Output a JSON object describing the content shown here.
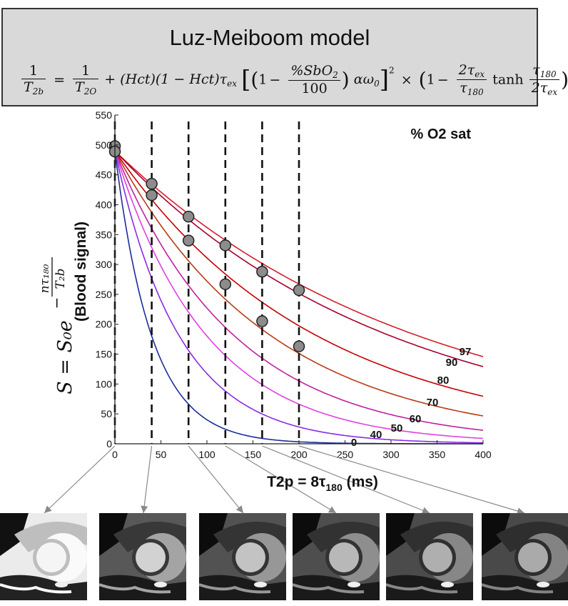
{
  "header": {
    "title": "Luz-Meiboom model",
    "equation": {
      "lhs_num": "1",
      "lhs_den_base": "T",
      "lhs_den_sub": "2b",
      "eq": "=",
      "t_num": "1",
      "t_den_base": "T",
      "t_den_sub": "2O",
      "hct_term": "+ (Hct)(1 − Hct)τ",
      "hct_sub": "ex",
      "sat_num": "%SbO",
      "sat_num_sub": "2",
      "sat_den": "100",
      "alpha_omega": "αω",
      "omega_sub": "0",
      "square": "2",
      "times": "×",
      "tau_num": "2τ",
      "tau_num_sub": "ex",
      "tau_den": "τ",
      "tau_den_sub": "180",
      "tanh": "tanh",
      "tanh_num": "τ",
      "tanh_num_sub": "180",
      "tanh_den": "2τ",
      "tanh_den_sub": "ex",
      "one": "1",
      "minus": "−"
    }
  },
  "chart_data": {
    "type": "line",
    "title": "",
    "xlabel": "T2p = 8τ180 (ms)",
    "xlabel_main": "T2p = 8τ",
    "xlabel_sub": "180",
    "xlabel_tail": " (ms)",
    "ylabel": "S = S0 e^(−nτ180/T2b) (Blood signal)",
    "ylabel_main": "(Blood signal)",
    "ylabel_formula": "S = S₀e",
    "ylabel_exp_num": "nτ₁₈₀",
    "ylabel_exp_den": "T₂b",
    "xlim": [
      0,
      400
    ],
    "ylim": [
      0,
      550
    ],
    "xticks": [
      0,
      50,
      100,
      150,
      200,
      250,
      300,
      350,
      400
    ],
    "yticks": [
      0,
      50,
      100,
      150,
      200,
      250,
      300,
      350,
      400,
      450,
      500,
      550
    ],
    "legend_title": "% O2 sat",
    "start_value": 490,
    "vertical_dashed_lines_x": [
      0,
      40,
      80,
      120,
      160,
      200
    ],
    "series": [
      {
        "name": "97",
        "color": "#d2202a",
        "T2": 330
      },
      {
        "name": "90",
        "color": "#a8002c",
        "T2": 300
      },
      {
        "name": "80",
        "color": "#c40000",
        "T2": 220
      },
      {
        "name": "70",
        "color": "#b83a14",
        "T2": 170
      },
      {
        "name": "60",
        "color": "#c020a0",
        "T2": 130
      },
      {
        "name": "50",
        "color": "#e040e0",
        "T2": 100
      },
      {
        "name": "40",
        "color": "#8a2be2",
        "T2": 70
      },
      {
        "name": "0",
        "color": "#1c2c9c",
        "T2": 40
      }
    ],
    "markers": [
      {
        "x": 0,
        "y": 498
      },
      {
        "x": 0,
        "y": 489
      },
      {
        "x": 40,
        "y": 435
      },
      {
        "x": 40,
        "y": 416
      },
      {
        "x": 80,
        "y": 380
      },
      {
        "x": 80,
        "y": 340
      },
      {
        "x": 120,
        "y": 332
      },
      {
        "x": 120,
        "y": 267
      },
      {
        "x": 160,
        "y": 288
      },
      {
        "x": 160,
        "y": 205
      },
      {
        "x": 200,
        "y": 257
      },
      {
        "x": 200,
        "y": 163
      }
    ]
  },
  "images": [
    {
      "label": "image-0ms"
    },
    {
      "label": "image-40ms"
    },
    {
      "label": "image-80ms"
    },
    {
      "label": "image-120ms"
    },
    {
      "label": "image-160ms"
    },
    {
      "label": "image-200ms"
    }
  ]
}
